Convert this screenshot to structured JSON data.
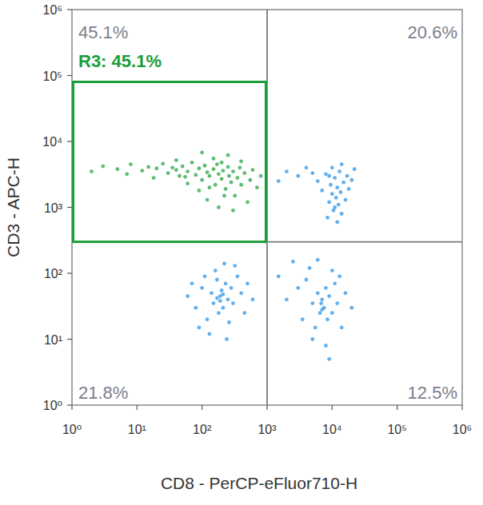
{
  "chart_data": {
    "type": "scatter",
    "x_label": "CD8 - PerCP-eFluor710-H",
    "y_label": "CD3 - APC-H",
    "log": true,
    "xlim": [
      1,
      1000000
    ],
    "ylim": [
      1,
      1000000
    ],
    "xticks": [
      {
        "value": 1,
        "label": "10⁰"
      },
      {
        "value": 10,
        "label": "10¹"
      },
      {
        "value": 100,
        "label": "10²"
      },
      {
        "value": 1000,
        "label": "10³"
      },
      {
        "value": 10000,
        "label": "10⁴"
      },
      {
        "value": 100000,
        "label": "10⁵"
      },
      {
        "value": 1000000,
        "label": "10⁶"
      }
    ],
    "yticks": [
      {
        "value": 1,
        "label": "10⁰"
      },
      {
        "value": 10,
        "label": "10¹"
      },
      {
        "value": 100,
        "label": "10²"
      },
      {
        "value": 1000,
        "label": "10³"
      },
      {
        "value": 10000,
        "label": "10⁴"
      },
      {
        "value": 100000,
        "label": "10⁵"
      },
      {
        "value": 1000000,
        "label": "10⁶"
      }
    ],
    "quadrant_x": 1000,
    "quadrant_y": 300,
    "quadrant_labels": [
      "45.1%",
      "20.6%",
      "21.8%",
      "12.5%"
    ],
    "gate": {
      "label": "R3: 45.1%",
      "xlim": [
        1,
        1000
      ],
      "ylim": [
        300,
        80000
      ]
    },
    "series": [
      {
        "name": "R3",
        "color": "#1a9e3a",
        "marker": "dot",
        "x": [
          3,
          5,
          8,
          12,
          15,
          20,
          25,
          30,
          35,
          40,
          50,
          55,
          60,
          70,
          80,
          90,
          100,
          110,
          120,
          130,
          150,
          160,
          170,
          180,
          200,
          210,
          230,
          250,
          260,
          280,
          300,
          320,
          350,
          380,
          400,
          450,
          500,
          550,
          600,
          700,
          800,
          120,
          90,
          180,
          60,
          150,
          250,
          40,
          100,
          300,
          2,
          7,
          18,
          45,
          200,
          400,
          130,
          220
        ],
        "values": [
          4200,
          3800,
          4500,
          3600,
          4100,
          3900,
          4600,
          3300,
          4000,
          3700,
          4200,
          2900,
          3500,
          4800,
          3100,
          3900,
          2600,
          4300,
          3400,
          3000,
          3800,
          2200,
          4500,
          3200,
          2700,
          3600,
          1900,
          4100,
          3000,
          2400,
          3500,
          1500,
          2800,
          4000,
          2200,
          3300,
          1200,
          2600,
          3700,
          2000,
          3000,
          1300,
          1800,
          1000,
          2300,
          5500,
          6200,
          5200,
          6800,
          900,
          3500,
          3200,
          2800,
          3000,
          4800,
          5000,
          2000,
          1500
        ]
      },
      {
        "color": "#1e8fe6",
        "marker": "dot",
        "x": [
          6000,
          7000,
          8000,
          9000,
          9500,
          10000,
          10500,
          11000,
          11500,
          12000,
          12500,
          13000,
          13500,
          14000,
          15000,
          16000,
          17000,
          18000,
          20000,
          22000,
          8500,
          10000,
          12000,
          14000,
          11000,
          9000,
          2000,
          3000,
          4000,
          1500,
          5000,
          60,
          80,
          100,
          120,
          140,
          150,
          170,
          180,
          190,
          200,
          210,
          230,
          250,
          260,
          280,
          300,
          350,
          400,
          450,
          500,
          160,
          220,
          130,
          240,
          320,
          110,
          70,
          600,
          90,
          190,
          210,
          170,
          2000,
          3000,
          3500,
          4000,
          5000,
          5500,
          6000,
          6500,
          7000,
          7500,
          8000,
          8500,
          9000,
          10000,
          11000,
          12000,
          14000,
          16000,
          20000,
          4500,
          6000,
          8000,
          9000,
          5000,
          10000,
          1500,
          2500,
          13000,
          7000,
          6800
        ],
        "values": [
          2500,
          1800,
          3200,
          1200,
          2200,
          1600,
          900,
          2800,
          1400,
          2000,
          1100,
          3500,
          1700,
          800,
          2400,
          1300,
          3000,
          1900,
          2600,
          3800,
          700,
          4000,
          600,
          4500,
          1000,
          3000,
          3500,
          3000,
          4000,
          2500,
          3300,
          45,
          30,
          60,
          20,
          50,
          35,
          80,
          25,
          45,
          55,
          30,
          70,
          40,
          18,
          60,
          35,
          90,
          50,
          25,
          70,
          110,
          140,
          12,
          10,
          130,
          90,
          70,
          40,
          15,
          38,
          48,
          42,
          40,
          60,
          20,
          80,
          35,
          15,
          50,
          25,
          40,
          30,
          60,
          20,
          45,
          25,
          70,
          35,
          15,
          50,
          30,
          120,
          160,
          8,
          5,
          10,
          110,
          90,
          150,
          90,
          28,
          35
        ]
      }
    ]
  }
}
